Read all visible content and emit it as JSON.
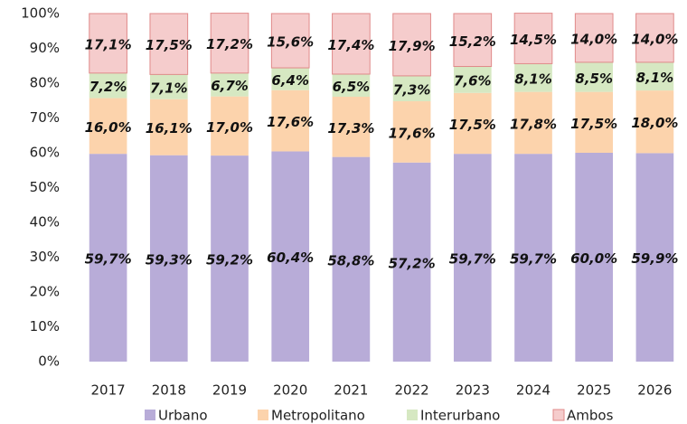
{
  "chart_data": {
    "type": "stacked_bar",
    "categories": [
      "2017",
      "2018",
      "2019",
      "2020",
      "2021",
      "2022",
      "2023",
      "2024",
      "2025",
      "2026"
    ],
    "series": [
      {
        "name": "Urbano",
        "color": "#b8acd8",
        "values": [
          59.7,
          59.3,
          59.2,
          60.4,
          58.8,
          57.2,
          59.7,
          59.7,
          60.0,
          59.9
        ],
        "value_labels": [
          "59,7%",
          "59,3%",
          "59,2%",
          "60,4%",
          "58,8%",
          "57,2%",
          "59,7%",
          "59,7%",
          "60,0%",
          "59,9%"
        ]
      },
      {
        "name": "Metropolitano",
        "color": "#fcd3ac",
        "values": [
          16.0,
          16.1,
          17.0,
          17.6,
          17.3,
          17.6,
          17.5,
          17.8,
          17.5,
          18.0
        ],
        "value_labels": [
          "16,0%",
          "16,1%",
          "17,0%",
          "17,6%",
          "17,3%",
          "17,6%",
          "17,5%",
          "17,8%",
          "17,5%",
          "18,0%"
        ]
      },
      {
        "name": "Interurbano",
        "color": "#d6e8c2",
        "values": [
          7.2,
          7.1,
          6.7,
          6.4,
          6.5,
          7.3,
          7.6,
          8.1,
          8.5,
          8.1
        ],
        "value_labels": [
          "7,2%",
          "7,1%",
          "6,7%",
          "6,4%",
          "6,5%",
          "7,3%",
          "7,6%",
          "8,1%",
          "8,5%",
          "8,1%"
        ]
      },
      {
        "name": "Ambos",
        "color": "#f5cccc",
        "values": [
          17.1,
          17.5,
          17.2,
          15.6,
          17.4,
          17.9,
          15.2,
          14.5,
          14.0,
          14.0
        ],
        "value_labels": [
          "17,1%",
          "17,5%",
          "17,2%",
          "15,6%",
          "17,4%",
          "17,9%",
          "15,2%",
          "14,5%",
          "14,0%",
          "14,0%"
        ]
      }
    ],
    "ylim": [
      0,
      100
    ],
    "yticks": [
      {
        "value": 0,
        "label": "0%"
      },
      {
        "value": 10,
        "label": "10%"
      },
      {
        "value": 20,
        "label": "20%"
      },
      {
        "value": 30,
        "label": "30%"
      },
      {
        "value": 40,
        "label": "40%"
      },
      {
        "value": 50,
        "label": "50%"
      },
      {
        "value": 60,
        "label": "60%"
      },
      {
        "value": 70,
        "label": "70%"
      },
      {
        "value": 80,
        "label": "80%"
      },
      {
        "value": 90,
        "label": "90%"
      },
      {
        "value": 100,
        "label": "100%"
      }
    ],
    "legend": "bottom"
  }
}
